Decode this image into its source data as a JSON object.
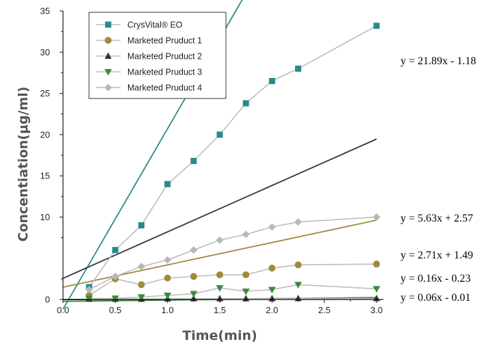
{
  "chart_data": {
    "type": "scatter",
    "title": "",
    "xlabel": "Time(min)",
    "ylabel": "Concentiation(μg/ml)",
    "xlim": [
      0,
      3.0
    ],
    "ylim": [
      0,
      35
    ],
    "x_ticks": [
      "0.0",
      "0.5",
      "1.0",
      "1.5",
      "2.0",
      "2.5",
      "3.0"
    ],
    "y_ticks": [
      "0",
      "10",
      "15",
      "20",
      "25",
      "30",
      "35"
    ],
    "grid": false,
    "legend_position": "top-left",
    "series": [
      {
        "name": "CrysVital® EO",
        "marker": "square",
        "color": "#2a8a8a",
        "fit_color": "#2a8a8a",
        "x": [
          0.25,
          0.5,
          0.75,
          1.0,
          1.25,
          1.5,
          1.75,
          2.0,
          2.25,
          3.0
        ],
        "y": [
          1.5,
          6.0,
          9.0,
          14.0,
          16.8,
          20.0,
          23.8,
          26.5,
          28.0,
          33.2
        ],
        "fit": {
          "slope": 21.89,
          "intercept": -1.18,
          "label": "y = 21.89x - 1.18"
        }
      },
      {
        "name": "Marketed Pruduct 1",
        "marker": "circle",
        "color": "#a08a3c",
        "fit_color": "#a08a3c",
        "x": [
          0.25,
          0.5,
          0.75,
          1.0,
          1.25,
          1.5,
          1.75,
          2.0,
          2.25,
          3.0
        ],
        "y": [
          0.5,
          2.5,
          1.8,
          2.6,
          2.8,
          3.0,
          3.0,
          3.8,
          4.2,
          4.3
        ],
        "fit": {
          "slope": 2.71,
          "intercept": 1.49,
          "label": "y = 2.71x + 1.49"
        }
      },
      {
        "name": "Marketed Pruduct 2",
        "marker": "triangle-up",
        "color": "#333333",
        "fit_color": "#333333",
        "x": [
          0.25,
          0.5,
          0.75,
          1.0,
          1.25,
          1.5,
          1.75,
          2.0,
          2.25,
          3.0
        ],
        "y": [
          0.05,
          0.05,
          0.05,
          0.08,
          0.1,
          0.1,
          0.1,
          0.1,
          0.12,
          0.12
        ],
        "fit": {
          "slope": 0.06,
          "intercept": -0.01,
          "label": "y = 0.06x - 0.01"
        }
      },
      {
        "name": "Marketed Pruduct 3",
        "marker": "triangle-down",
        "color": "#3a8a3a",
        "fit_color": "#3a8a3a",
        "x": [
          0.25,
          0.5,
          0.75,
          1.0,
          1.25,
          1.5,
          1.75,
          2.0,
          2.25,
          3.0
        ],
        "y": [
          0.1,
          0.15,
          0.3,
          0.5,
          0.7,
          1.4,
          1.0,
          1.2,
          1.8,
          1.3
        ],
        "fit": {
          "slope": 0.16,
          "intercept": -0.23,
          "label": "y = 0.16x - 0.23"
        }
      },
      {
        "name": "Marketed Pruduct 4",
        "marker": "diamond",
        "color": "#b8b8b8",
        "fit_color": "#333333",
        "x": [
          0.25,
          0.5,
          0.75,
          1.0,
          1.25,
          1.5,
          1.75,
          2.0,
          2.25,
          3.0
        ],
        "y": [
          1.2,
          2.8,
          4.0,
          4.8,
          6.0,
          7.2,
          7.9,
          8.8,
          9.4,
          10.0
        ],
        "fit": {
          "slope": 5.63,
          "intercept": 2.57,
          "label": "y = 5.63x + 2.57"
        }
      }
    ]
  }
}
